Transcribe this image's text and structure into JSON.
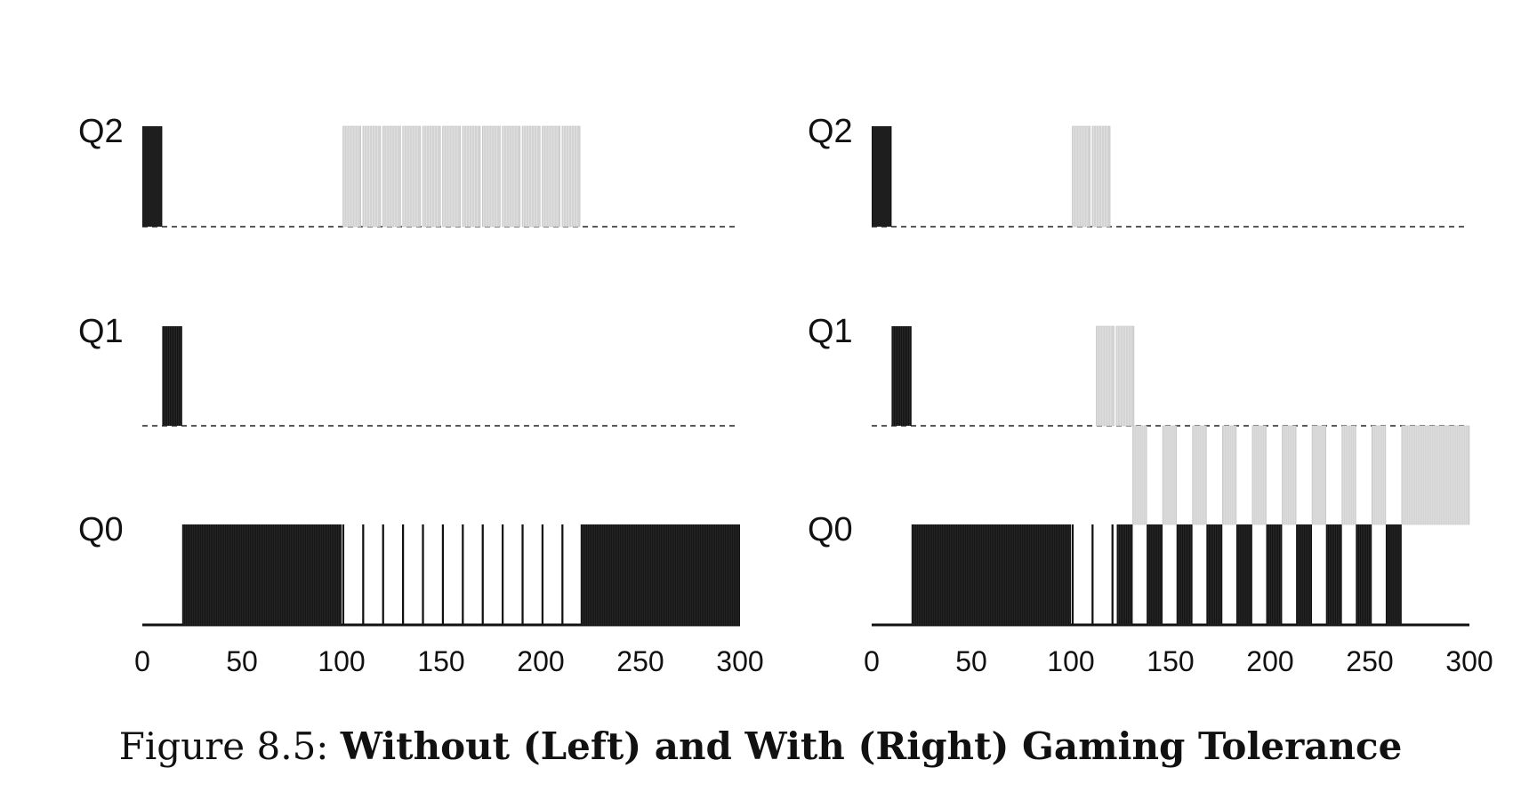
{
  "caption": {
    "prefix": "Figure 8.5: ",
    "title": "Without (Left) and With (Right) Gaming Tolerance"
  },
  "colors": {
    "job_a": "#111111",
    "job_b": "#d3d3d3",
    "job_b_outline": "#bdbdbd"
  },
  "chart_data": [
    {
      "type": "gantt",
      "panel": "left",
      "queues": [
        "Q0",
        "Q1",
        "Q2"
      ],
      "xlim": [
        0,
        300
      ],
      "xticks": [
        0,
        50,
        100,
        150,
        200,
        250,
        300
      ],
      "series": [
        {
          "color": "#111111",
          "segments": [
            {
              "queue": "Q2",
              "start": 0,
              "end": 10
            },
            {
              "queue": "Q1",
              "start": 10,
              "end": 20
            },
            {
              "queue": "Q0",
              "start": 20,
              "end": 100
            },
            {
              "queue": "Q0",
              "start": 100,
              "end": 220,
              "pattern": "interleaved"
            },
            {
              "queue": "Q0",
              "start": 220,
              "end": 300
            }
          ]
        },
        {
          "color": "#d3d3d3",
          "segments": [
            {
              "queue": "Q2",
              "start": 100,
              "end": 220,
              "pattern": "interleaved"
            }
          ]
        }
      ]
    },
    {
      "type": "gantt",
      "panel": "right",
      "queues": [
        "Q0",
        "Q1",
        "Q2"
      ],
      "xlim": [
        0,
        300
      ],
      "xticks": [
        0,
        50,
        100,
        150,
        200,
        250,
        300
      ],
      "series": [
        {
          "color": "#111111",
          "segments": [
            {
              "queue": "Q2",
              "start": 0,
              "end": 10
            },
            {
              "queue": "Q1",
              "start": 10,
              "end": 20
            },
            {
              "queue": "Q0",
              "start": 20,
              "end": 100
            },
            {
              "queue": "Q0",
              "start": 100,
              "end": 122,
              "pattern": "interleaved"
            },
            {
              "queue": "Q0",
              "start": 123,
              "end": 131
            },
            {
              "queue": "Q0",
              "start": 138,
              "end": 146
            },
            {
              "queue": "Q0",
              "start": 153,
              "end": 161
            },
            {
              "queue": "Q0",
              "start": 168,
              "end": 176
            },
            {
              "queue": "Q0",
              "start": 183,
              "end": 191
            },
            {
              "queue": "Q0",
              "start": 198,
              "end": 206
            },
            {
              "queue": "Q0",
              "start": 213,
              "end": 221
            },
            {
              "queue": "Q0",
              "start": 228,
              "end": 236
            },
            {
              "queue": "Q0",
              "start": 243,
              "end": 251
            },
            {
              "queue": "Q0",
              "start": 258,
              "end": 266
            }
          ]
        },
        {
          "color": "#d3d3d3",
          "segments": [
            {
              "queue": "Q2",
              "start": 100,
              "end": 111,
              "pattern": "interleaved"
            },
            {
              "queue": "Q1",
              "start": 112,
              "end": 123,
              "pattern": "interleaved"
            },
            {
              "queue": "Q0",
              "start": 131,
              "end": 138,
              "raised": true
            },
            {
              "queue": "Q0",
              "start": 146,
              "end": 153,
              "raised": true
            },
            {
              "queue": "Q0",
              "start": 161,
              "end": 168,
              "raised": true
            },
            {
              "queue": "Q0",
              "start": 176,
              "end": 183,
              "raised": true
            },
            {
              "queue": "Q0",
              "start": 191,
              "end": 198,
              "raised": true
            },
            {
              "queue": "Q0",
              "start": 206,
              "end": 213,
              "raised": true
            },
            {
              "queue": "Q0",
              "start": 221,
              "end": 228,
              "raised": true
            },
            {
              "queue": "Q0",
              "start": 236,
              "end": 243,
              "raised": true
            },
            {
              "queue": "Q0",
              "start": 251,
              "end": 258,
              "raised": true
            },
            {
              "queue": "Q0",
              "start": 266,
              "end": 300,
              "raised": true
            }
          ]
        }
      ]
    }
  ]
}
